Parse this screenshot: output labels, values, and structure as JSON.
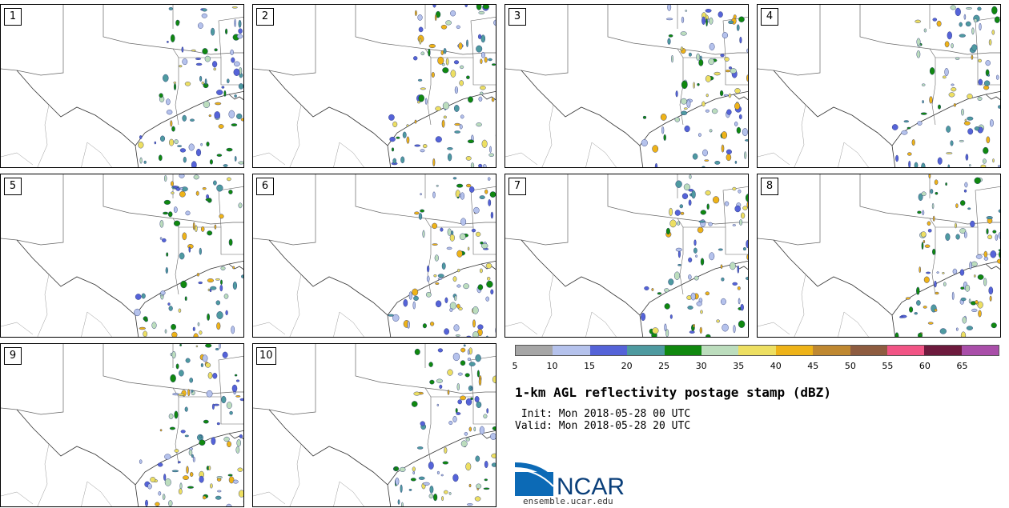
{
  "panels": [
    {
      "label": "1"
    },
    {
      "label": "2"
    },
    {
      "label": "3"
    },
    {
      "label": "4"
    },
    {
      "label": "5"
    },
    {
      "label": "6"
    },
    {
      "label": "7"
    },
    {
      "label": "8"
    },
    {
      "label": "9"
    },
    {
      "label": "10"
    }
  ],
  "colorbar": {
    "colors": [
      "#a6a6a6",
      "#b5c2ec",
      "#5563d8",
      "#4e9aa0",
      "#10880f",
      "#bcddbd",
      "#eddf62",
      "#eeb318",
      "#bf8831",
      "#8e5c40",
      "#f15485",
      "#6d1a3d",
      "#a94ea9"
    ],
    "ticks": [
      "5",
      "10",
      "15",
      "20",
      "25",
      "30",
      "35",
      "40",
      "45",
      "50",
      "55",
      "60",
      "65"
    ]
  },
  "title": "1-km AGL reflectivity postage stamp (dBZ)",
  "init": " Init: Mon 2018-05-28 00 UTC",
  "valid": "Valid: Mon 2018-05-28 20 UTC",
  "logo_text": "NCAR",
  "site": "ensemble.ucar.edu"
}
